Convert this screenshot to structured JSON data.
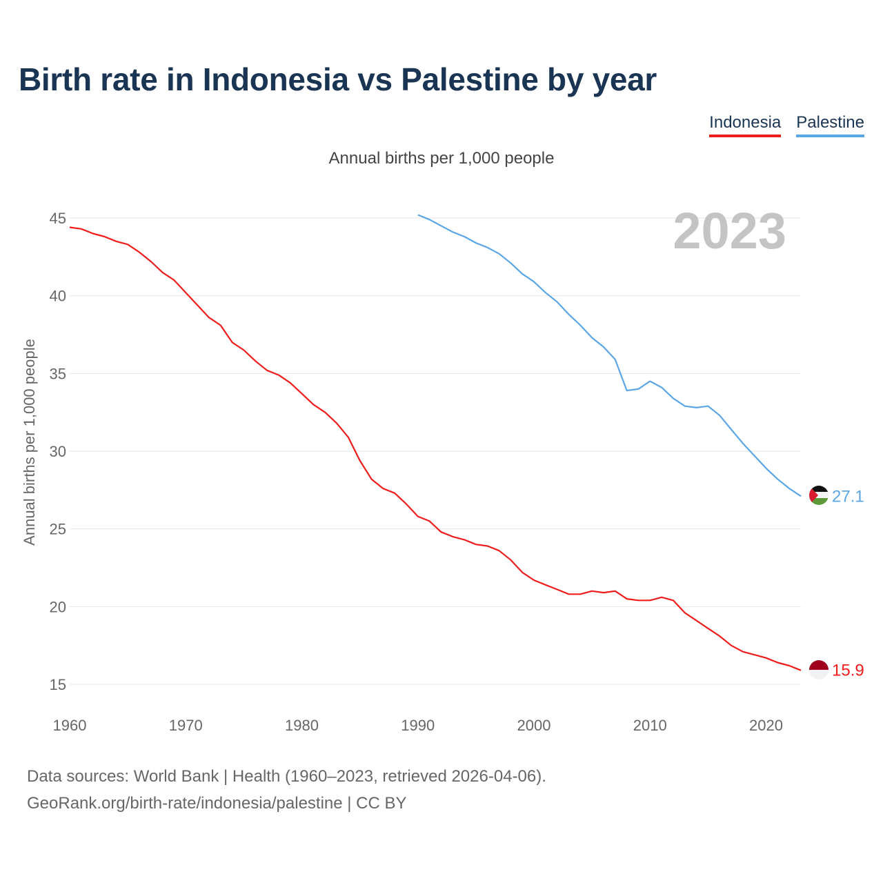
{
  "title": "Birth rate in Indonesia vs Palestine by year",
  "subtitle": "Annual births per 1,000 people",
  "legend": [
    "Indonesia",
    "Palestine"
  ],
  "source_line1": "Data sources: World Bank | Health (1960–2023, retrieved 2026-04-06).",
  "source_line2": "GeoRank.org/birth-rate/indonesia/palestine | CC BY",
  "colors": {
    "indonesia": "#ef1c1c",
    "palestine": "#5aa6e6",
    "title": "#1a3453"
  },
  "chart_data": {
    "type": "line",
    "title": "Birth rate in Indonesia vs Palestine by year",
    "ylabel": "Annual births per 1,000 people",
    "xlabel": "",
    "xlim": [
      1960,
      2023
    ],
    "ylim": [
      15,
      45
    ],
    "xticks": [
      1960,
      1970,
      1980,
      1990,
      2000,
      2010,
      2020
    ],
    "yticks": [
      15,
      20,
      25,
      30,
      35,
      40,
      45
    ],
    "year_label": "2023",
    "series": [
      {
        "name": "Indonesia",
        "color": "#ef1c1c",
        "end_label": "15.9",
        "x": [
          1960,
          1961,
          1962,
          1963,
          1964,
          1965,
          1966,
          1967,
          1968,
          1969,
          1970,
          1971,
          1972,
          1973,
          1974,
          1975,
          1976,
          1977,
          1978,
          1979,
          1980,
          1981,
          1982,
          1983,
          1984,
          1985,
          1986,
          1987,
          1988,
          1989,
          1990,
          1991,
          1992,
          1993,
          1994,
          1995,
          1996,
          1997,
          1998,
          1999,
          2000,
          2001,
          2002,
          2003,
          2004,
          2005,
          2006,
          2007,
          2008,
          2009,
          2010,
          2011,
          2012,
          2013,
          2014,
          2015,
          2016,
          2017,
          2018,
          2019,
          2020,
          2021,
          2022,
          2023
        ],
        "values": [
          44.4,
          44.3,
          44.0,
          43.8,
          43.5,
          43.3,
          42.8,
          42.2,
          41.5,
          41.0,
          40.2,
          39.4,
          38.6,
          38.1,
          37.0,
          36.5,
          35.8,
          35.2,
          34.9,
          34.4,
          33.7,
          33.0,
          32.5,
          31.8,
          30.9,
          29.4,
          28.2,
          27.6,
          27.3,
          26.6,
          25.8,
          25.5,
          24.8,
          24.5,
          24.3,
          24.0,
          23.9,
          23.6,
          23.0,
          22.2,
          21.7,
          21.4,
          21.1,
          20.8,
          20.8,
          21.0,
          20.9,
          21.0,
          20.5,
          20.4,
          20.4,
          20.6,
          20.4,
          19.6,
          19.1,
          18.6,
          18.1,
          17.5,
          17.1,
          16.9,
          16.7,
          16.4,
          16.2,
          15.9
        ]
      },
      {
        "name": "Palestine",
        "color": "#5aa6e6",
        "end_label": "27.1",
        "x": [
          1990,
          1991,
          1992,
          1993,
          1994,
          1995,
          1996,
          1997,
          1998,
          1999,
          2000,
          2001,
          2002,
          2003,
          2004,
          2005,
          2006,
          2007,
          2008,
          2009,
          2010,
          2011,
          2012,
          2013,
          2014,
          2015,
          2016,
          2017,
          2018,
          2019,
          2020,
          2021,
          2022,
          2023
        ],
        "values": [
          45.2,
          44.9,
          44.5,
          44.1,
          43.8,
          43.4,
          43.1,
          42.7,
          42.1,
          41.4,
          40.9,
          40.2,
          39.6,
          38.8,
          38.1,
          37.3,
          36.7,
          35.9,
          33.9,
          34.0,
          34.5,
          34.1,
          33.4,
          32.9,
          32.8,
          32.9,
          32.3,
          31.4,
          30.5,
          29.7,
          28.9,
          28.2,
          27.6,
          27.1
        ]
      }
    ]
  }
}
